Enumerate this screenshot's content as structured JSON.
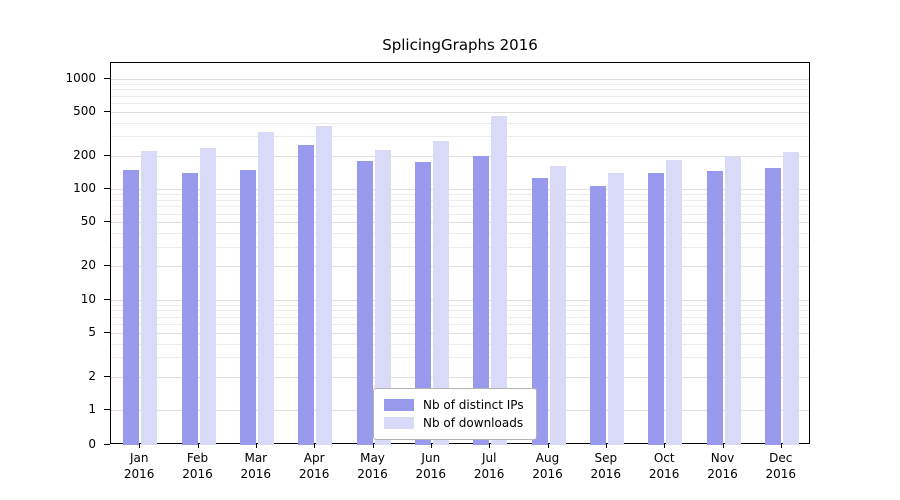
{
  "chart_data": {
    "type": "bar",
    "title": "SplicingGraphs 2016",
    "categories": [
      "Jan 2016",
      "Feb 2016",
      "Mar 2016",
      "Apr 2016",
      "May 2016",
      "Jun 2016",
      "Jul 2016",
      "Aug 2016",
      "Sep 2016",
      "Oct 2016",
      "Nov 2016",
      "Dec 2016"
    ],
    "series": [
      {
        "name": "Nb of distinct IPs",
        "color": "#9999ee",
        "values": [
          150,
          140,
          150,
          250,
          180,
          175,
          200,
          125,
          107,
          140,
          145,
          155
        ]
      },
      {
        "name": "Nb of downloads",
        "color": "#d9d9f8",
        "values": [
          220,
          235,
          330,
          370,
          225,
          270,
          460,
          160,
          140,
          185,
          195,
          215
        ]
      }
    ],
    "yscale": "symlog",
    "yticks": [
      0,
      1,
      2,
      5,
      10,
      20,
      50,
      100,
      200,
      500,
      1000
    ],
    "ylim": [
      0,
      1000
    ],
    "xlabel": "",
    "ylabel": "",
    "grid": true,
    "legend_position": "bottom-center",
    "colors": {
      "major_grid": "#dfdfdf",
      "minor_grid": "#ececec",
      "axis": "#000000"
    }
  }
}
